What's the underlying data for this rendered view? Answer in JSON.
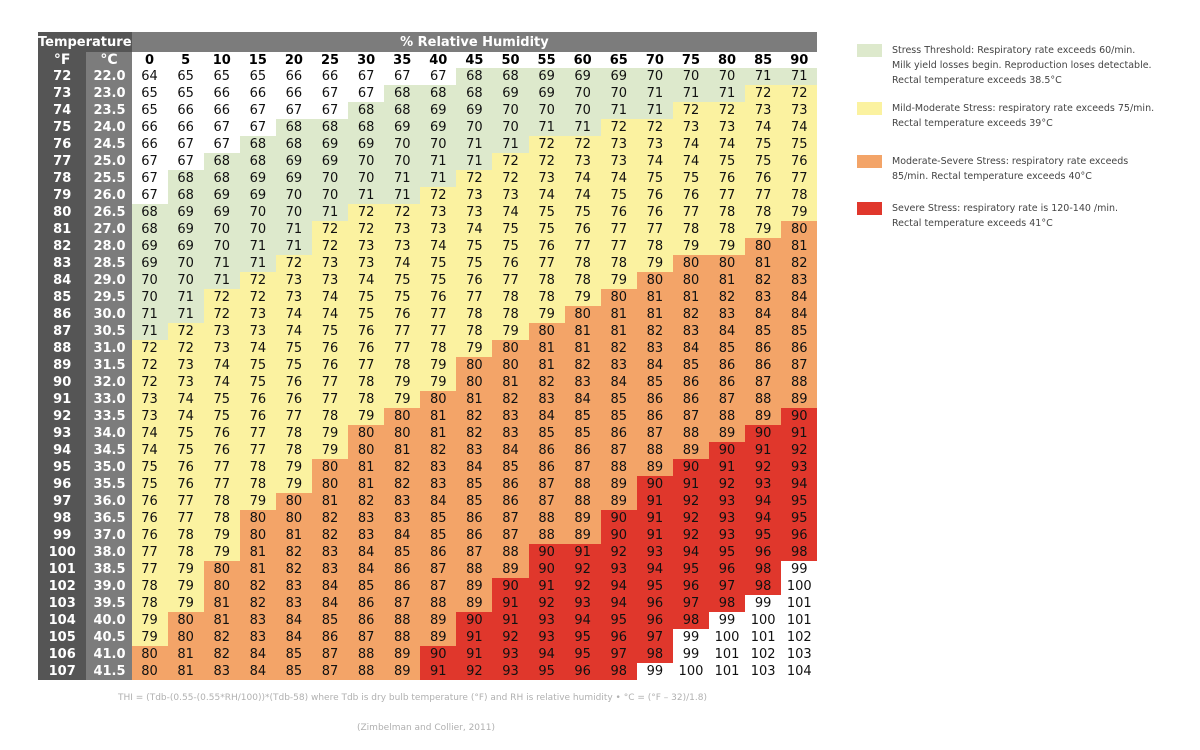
{
  "chart_data": {
    "type": "table",
    "header_temperature": "Temperature",
    "header_rh": "% Relative Humidity",
    "unit_f": "°F",
    "unit_c": "°C",
    "humidity": [
      "0",
      "5",
      "10",
      "15",
      "20",
      "25",
      "30",
      "35",
      "40",
      "45",
      "50",
      "55",
      "60",
      "65",
      "70",
      "75",
      "80",
      "85",
      "90"
    ],
    "rows": [
      {
        "f": "72",
        "c": "22.0",
        "v": [
          64,
          65,
          65,
          65,
          66,
          66,
          67,
          67,
          67,
          68,
          68,
          69,
          69,
          69,
          70,
          70,
          70,
          71,
          71
        ]
      },
      {
        "f": "73",
        "c": "23.0",
        "v": [
          65,
          65,
          66,
          66,
          66,
          67,
          67,
          68,
          68,
          68,
          69,
          69,
          70,
          70,
          71,
          71,
          71,
          72,
          72
        ]
      },
      {
        "f": "74",
        "c": "23.5",
        "v": [
          65,
          66,
          66,
          67,
          67,
          67,
          68,
          68,
          69,
          69,
          70,
          70,
          70,
          71,
          71,
          72,
          72,
          73,
          73
        ]
      },
      {
        "f": "75",
        "c": "24.0",
        "v": [
          66,
          66,
          67,
          67,
          68,
          68,
          68,
          69,
          69,
          70,
          70,
          71,
          71,
          72,
          72,
          73,
          73,
          74,
          74
        ]
      },
      {
        "f": "76",
        "c": "24.5",
        "v": [
          66,
          67,
          67,
          68,
          68,
          69,
          69,
          70,
          70,
          71,
          71,
          72,
          72,
          73,
          73,
          74,
          74,
          75,
          75
        ]
      },
      {
        "f": "77",
        "c": "25.0",
        "v": [
          67,
          67,
          68,
          68,
          69,
          69,
          70,
          70,
          71,
          71,
          72,
          72,
          73,
          73,
          74,
          74,
          75,
          75,
          76
        ]
      },
      {
        "f": "78",
        "c": "25.5",
        "v": [
          67,
          68,
          68,
          69,
          69,
          70,
          70,
          71,
          71,
          72,
          72,
          73,
          74,
          74,
          75,
          75,
          76,
          76,
          77
        ]
      },
      {
        "f": "79",
        "c": "26.0",
        "v": [
          67,
          68,
          69,
          69,
          70,
          70,
          71,
          71,
          72,
          73,
          73,
          74,
          74,
          75,
          76,
          76,
          77,
          77,
          78
        ]
      },
      {
        "f": "80",
        "c": "26.5",
        "v": [
          68,
          69,
          69,
          70,
          70,
          71,
          72,
          72,
          73,
          73,
          74,
          75,
          75,
          76,
          76,
          77,
          78,
          78,
          79
        ]
      },
      {
        "f": "81",
        "c": "27.0",
        "v": [
          68,
          69,
          70,
          70,
          71,
          72,
          72,
          73,
          73,
          74,
          75,
          75,
          76,
          77,
          77,
          78,
          78,
          79,
          80
        ]
      },
      {
        "f": "82",
        "c": "28.0",
        "v": [
          69,
          69,
          70,
          71,
          71,
          72,
          73,
          73,
          74,
          75,
          75,
          76,
          77,
          77,
          78,
          79,
          79,
          80,
          81
        ]
      },
      {
        "f": "83",
        "c": "28.5",
        "v": [
          69,
          70,
          71,
          71,
          72,
          73,
          73,
          74,
          75,
          75,
          76,
          77,
          78,
          78,
          79,
          80,
          80,
          81,
          82
        ]
      },
      {
        "f": "84",
        "c": "29.0",
        "v": [
          70,
          70,
          71,
          72,
          73,
          73,
          74,
          75,
          75,
          76,
          77,
          78,
          78,
          79,
          80,
          80,
          81,
          82,
          83
        ]
      },
      {
        "f": "85",
        "c": "29.5",
        "v": [
          70,
          71,
          72,
          72,
          73,
          74,
          75,
          75,
          76,
          77,
          78,
          78,
          79,
          80,
          81,
          81,
          82,
          83,
          84
        ]
      },
      {
        "f": "86",
        "c": "30.0",
        "v": [
          71,
          71,
          72,
          73,
          74,
          74,
          75,
          76,
          77,
          78,
          78,
          79,
          80,
          81,
          81,
          82,
          83,
          84,
          84
        ]
      },
      {
        "f": "87",
        "c": "30.5",
        "v": [
          71,
          72,
          73,
          73,
          74,
          75,
          76,
          77,
          77,
          78,
          79,
          80,
          81,
          81,
          82,
          83,
          84,
          85,
          85
        ]
      },
      {
        "f": "88",
        "c": "31.0",
        "v": [
          72,
          72,
          73,
          74,
          75,
          76,
          76,
          77,
          78,
          79,
          80,
          81,
          81,
          82,
          83,
          84,
          85,
          86,
          86
        ]
      },
      {
        "f": "89",
        "c": "31.5",
        "v": [
          72,
          73,
          74,
          75,
          75,
          76,
          77,
          78,
          79,
          80,
          80,
          81,
          82,
          83,
          84,
          85,
          86,
          86,
          87
        ]
      },
      {
        "f": "90",
        "c": "32.0",
        "v": [
          72,
          73,
          74,
          75,
          76,
          77,
          78,
          79,
          79,
          80,
          81,
          82,
          83,
          84,
          85,
          86,
          86,
          87,
          88
        ]
      },
      {
        "f": "91",
        "c": "33.0",
        "v": [
          73,
          74,
          75,
          76,
          76,
          77,
          78,
          79,
          80,
          81,
          82,
          83,
          84,
          85,
          86,
          86,
          87,
          88,
          89
        ]
      },
      {
        "f": "92",
        "c": "33.5",
        "v": [
          73,
          74,
          75,
          76,
          77,
          78,
          79,
          80,
          81,
          82,
          83,
          84,
          85,
          85,
          86,
          87,
          88,
          89,
          90
        ]
      },
      {
        "f": "93",
        "c": "34.0",
        "v": [
          74,
          75,
          76,
          77,
          78,
          79,
          80,
          80,
          81,
          82,
          83,
          85,
          85,
          86,
          87,
          88,
          89,
          90,
          91
        ]
      },
      {
        "f": "94",
        "c": "34.5",
        "v": [
          74,
          75,
          76,
          77,
          78,
          79,
          80,
          81,
          82,
          83,
          84,
          86,
          86,
          87,
          88,
          89,
          90,
          91,
          92
        ]
      },
      {
        "f": "95",
        "c": "35.0",
        "v": [
          75,
          76,
          77,
          78,
          79,
          80,
          81,
          82,
          83,
          84,
          85,
          86,
          87,
          88,
          89,
          90,
          91,
          92,
          93
        ]
      },
      {
        "f": "96",
        "c": "35.5",
        "v": [
          75,
          76,
          77,
          78,
          79,
          80,
          81,
          82,
          83,
          85,
          86,
          87,
          88,
          89,
          90,
          91,
          92,
          93,
          94
        ]
      },
      {
        "f": "97",
        "c": "36.0",
        "v": [
          76,
          77,
          78,
          79,
          80,
          81,
          82,
          83,
          84,
          85,
          86,
          87,
          88,
          89,
          91,
          92,
          93,
          94,
          95
        ]
      },
      {
        "f": "98",
        "c": "36.5",
        "v": [
          76,
          77,
          78,
          80,
          80,
          82,
          83,
          83,
          85,
          86,
          87,
          88,
          89,
          90,
          91,
          92,
          93,
          94,
          95
        ]
      },
      {
        "f": "99",
        "c": "37.0",
        "v": [
          76,
          78,
          79,
          80,
          81,
          82,
          83,
          84,
          85,
          86,
          87,
          88,
          89,
          90,
          91,
          92,
          93,
          95,
          96
        ]
      },
      {
        "f": "100",
        "c": "38.0",
        "v": [
          77,
          78,
          79,
          81,
          82,
          83,
          84,
          85,
          86,
          87,
          88,
          90,
          91,
          92,
          93,
          94,
          95,
          96,
          98
        ]
      },
      {
        "f": "101",
        "c": "38.5",
        "v": [
          77,
          79,
          80,
          81,
          82,
          83,
          84,
          86,
          87,
          88,
          89,
          90,
          92,
          93,
          94,
          95,
          96,
          98,
          99
        ]
      },
      {
        "f": "102",
        "c": "39.0",
        "v": [
          78,
          79,
          80,
          82,
          83,
          84,
          85,
          86,
          87,
          89,
          90,
          91,
          92,
          94,
          95,
          96,
          97,
          98,
          100
        ]
      },
      {
        "f": "103",
        "c": "39.5",
        "v": [
          78,
          79,
          81,
          82,
          83,
          84,
          86,
          87,
          88,
          89,
          91,
          92,
          93,
          94,
          96,
          97,
          98,
          99,
          101
        ]
      },
      {
        "f": "104",
        "c": "40.0",
        "v": [
          79,
          80,
          81,
          83,
          84,
          85,
          86,
          88,
          89,
          90,
          91,
          93,
          94,
          95,
          96,
          98,
          99,
          100,
          101
        ]
      },
      {
        "f": "105",
        "c": "40.5",
        "v": [
          79,
          80,
          82,
          83,
          84,
          86,
          87,
          88,
          89,
          91,
          92,
          93,
          95,
          96,
          97,
          99,
          100,
          101,
          102
        ]
      },
      {
        "f": "106",
        "c": "41.0",
        "v": [
          80,
          81,
          82,
          84,
          85,
          87,
          88,
          89,
          90,
          91,
          93,
          94,
          95,
          97,
          98,
          99,
          101,
          102,
          103
        ]
      },
      {
        "f": "107",
        "c": "41.5",
        "v": [
          80,
          81,
          83,
          84,
          85,
          87,
          88,
          89,
          91,
          92,
          93,
          95,
          96,
          98,
          99,
          100,
          101,
          103,
          104
        ]
      }
    ],
    "colors": {
      "none": "#ffffff",
      "threshold": "#dde9cc",
      "mild": "#fbf2a0",
      "moderate": "#f3a468",
      "severe": "#e0372c"
    },
    "legend": [
      {
        "key": "threshold",
        "text": "Stress Threshold: Respiratory rate exceeds 60/min.\nMilk yield losses begin. Reproduction loses detectable.\nRectal temperature exceeds 38.5°C"
      },
      {
        "key": "mild",
        "text": "Mild-Moderate Stress: respiratory rate exceeds 75/min.\nRectal temperature exceeds 39°C"
      },
      {
        "key": "moderate",
        "text": "Moderate-Severe Stress: respiratory rate exceeds\n85/min. Rectal temperature exceeds 40°C"
      },
      {
        "key": "severe",
        "text": "Severe Stress: respiratory rate is 120-140 /min.\nRectal temperature exceeds 41°C"
      }
    ],
    "formula": "THI = (Tdb-(0.55-(0.55*RH/100))*(Tdb-58) where Tdb is dry bulb temperature (°F) and RH is relative humidity   •   °C = (°F – 32)/1.8)",
    "citation": "(Zimbelman and Collier, 2011)"
  }
}
